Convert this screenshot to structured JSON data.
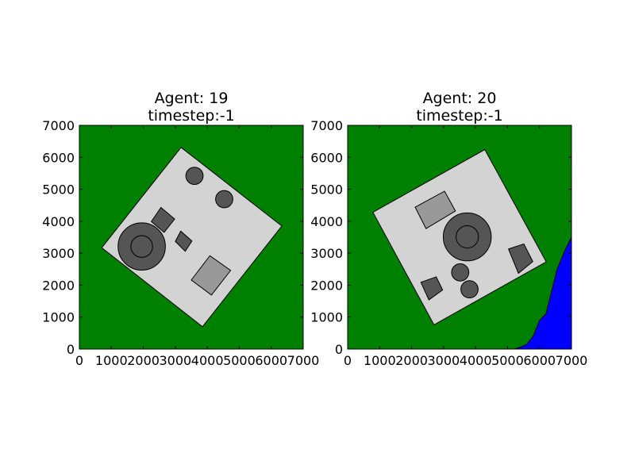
{
  "colors": {
    "ground": "#008000",
    "platform": "#d3d3d3",
    "dark_obstacle": "#555555",
    "light_obstacle": "#999999",
    "water": "#0000ff",
    "stroke": "#000000"
  },
  "panels": [
    {
      "title_line1": "Agent: 19",
      "title_line2": "timestep:-1",
      "xlim": [
        0,
        7000
      ],
      "ylim": [
        0,
        7000
      ],
      "x_ticks": [
        "0",
        "1000",
        "2000",
        "3000",
        "4000",
        "5000",
        "6000",
        "7000"
      ],
      "y_ticks": [
        "0",
        "1000",
        "2000",
        "3000",
        "4000",
        "5000",
        "6000",
        "7000"
      ],
      "platform": [
        [
          3180,
          6310
        ],
        [
          6330,
          3850
        ],
        [
          3850,
          700
        ],
        [
          700,
          3170
        ]
      ],
      "circles": [
        {
          "x": 1950,
          "y": 3210,
          "r": 740,
          "fill": "dark"
        },
        {
          "x": 1950,
          "y": 3210,
          "r": 340,
          "fill": "dark"
        },
        {
          "x": 3600,
          "y": 5420,
          "r": 270,
          "fill": "dark"
        },
        {
          "x": 4530,
          "y": 4690,
          "r": 270,
          "fill": "dark"
        }
      ],
      "polygons": [
        {
          "pts": [
            [
              2550,
              4430
            ],
            [
              2250,
              3990
            ],
            [
              2650,
              3650
            ],
            [
              2980,
              4070
            ]
          ],
          "fill": "dark"
        },
        {
          "pts": [
            [
              3170,
              3690
            ],
            [
              3000,
              3370
            ],
            [
              3310,
              3060
            ],
            [
              3520,
              3380
            ]
          ],
          "fill": "dark"
        },
        {
          "pts": [
            [
              4080,
              2920
            ],
            [
              3500,
              2160
            ],
            [
              4130,
              1690
            ],
            [
              4730,
              2460
            ]
          ],
          "fill": "light"
        }
      ],
      "water": []
    },
    {
      "title_line1": "Agent: 20",
      "title_line2": "timestep:-1",
      "xlim": [
        0,
        7000
      ],
      "ylim": [
        0,
        7000
      ],
      "x_ticks": [
        "0",
        "1000",
        "2000",
        "3000",
        "4000",
        "5000",
        "6000",
        "7000"
      ],
      "y_ticks": [
        "0",
        "1000",
        "2000",
        "3000",
        "4000",
        "5000",
        "6000",
        "7000"
      ],
      "platform": [
        [
          4290,
          6240
        ],
        [
          6210,
          2730
        ],
        [
          2700,
          760
        ],
        [
          790,
          4280
        ]
      ],
      "circles": [
        {
          "x": 3740,
          "y": 3510,
          "r": 750,
          "fill": "dark"
        },
        {
          "x": 3740,
          "y": 3510,
          "r": 350,
          "fill": "dark"
        },
        {
          "x": 3520,
          "y": 2400,
          "r": 270,
          "fill": "dark"
        },
        {
          "x": 3810,
          "y": 1870,
          "r": 270,
          "fill": "dark"
        }
      ],
      "polygons": [
        {
          "pts": [
            [
              2110,
              4440
            ],
            [
              3030,
              4940
            ],
            [
              3370,
              4320
            ],
            [
              2450,
              3770
            ]
          ],
          "fill": "light"
        },
        {
          "pts": [
            [
              2290,
              2090
            ],
            [
              2770,
              2260
            ],
            [
              2970,
              1850
            ],
            [
              2540,
              1540
            ]
          ],
          "fill": "dark"
        },
        {
          "pts": [
            [
              5030,
              3130
            ],
            [
              5510,
              3290
            ],
            [
              5790,
              2740
            ],
            [
              5340,
              2370
            ]
          ],
          "fill": "dark"
        }
      ],
      "water": [
        [
          5200,
          0
        ],
        [
          5400,
          60
        ],
        [
          5600,
          150
        ],
        [
          5800,
          400
        ],
        [
          6000,
          900
        ],
        [
          6200,
          1100
        ],
        [
          6300,
          1500
        ],
        [
          6400,
          1900
        ],
        [
          6550,
          2500
        ],
        [
          6800,
          3100
        ],
        [
          7000,
          3500
        ],
        [
          7000,
          0
        ]
      ]
    }
  ]
}
